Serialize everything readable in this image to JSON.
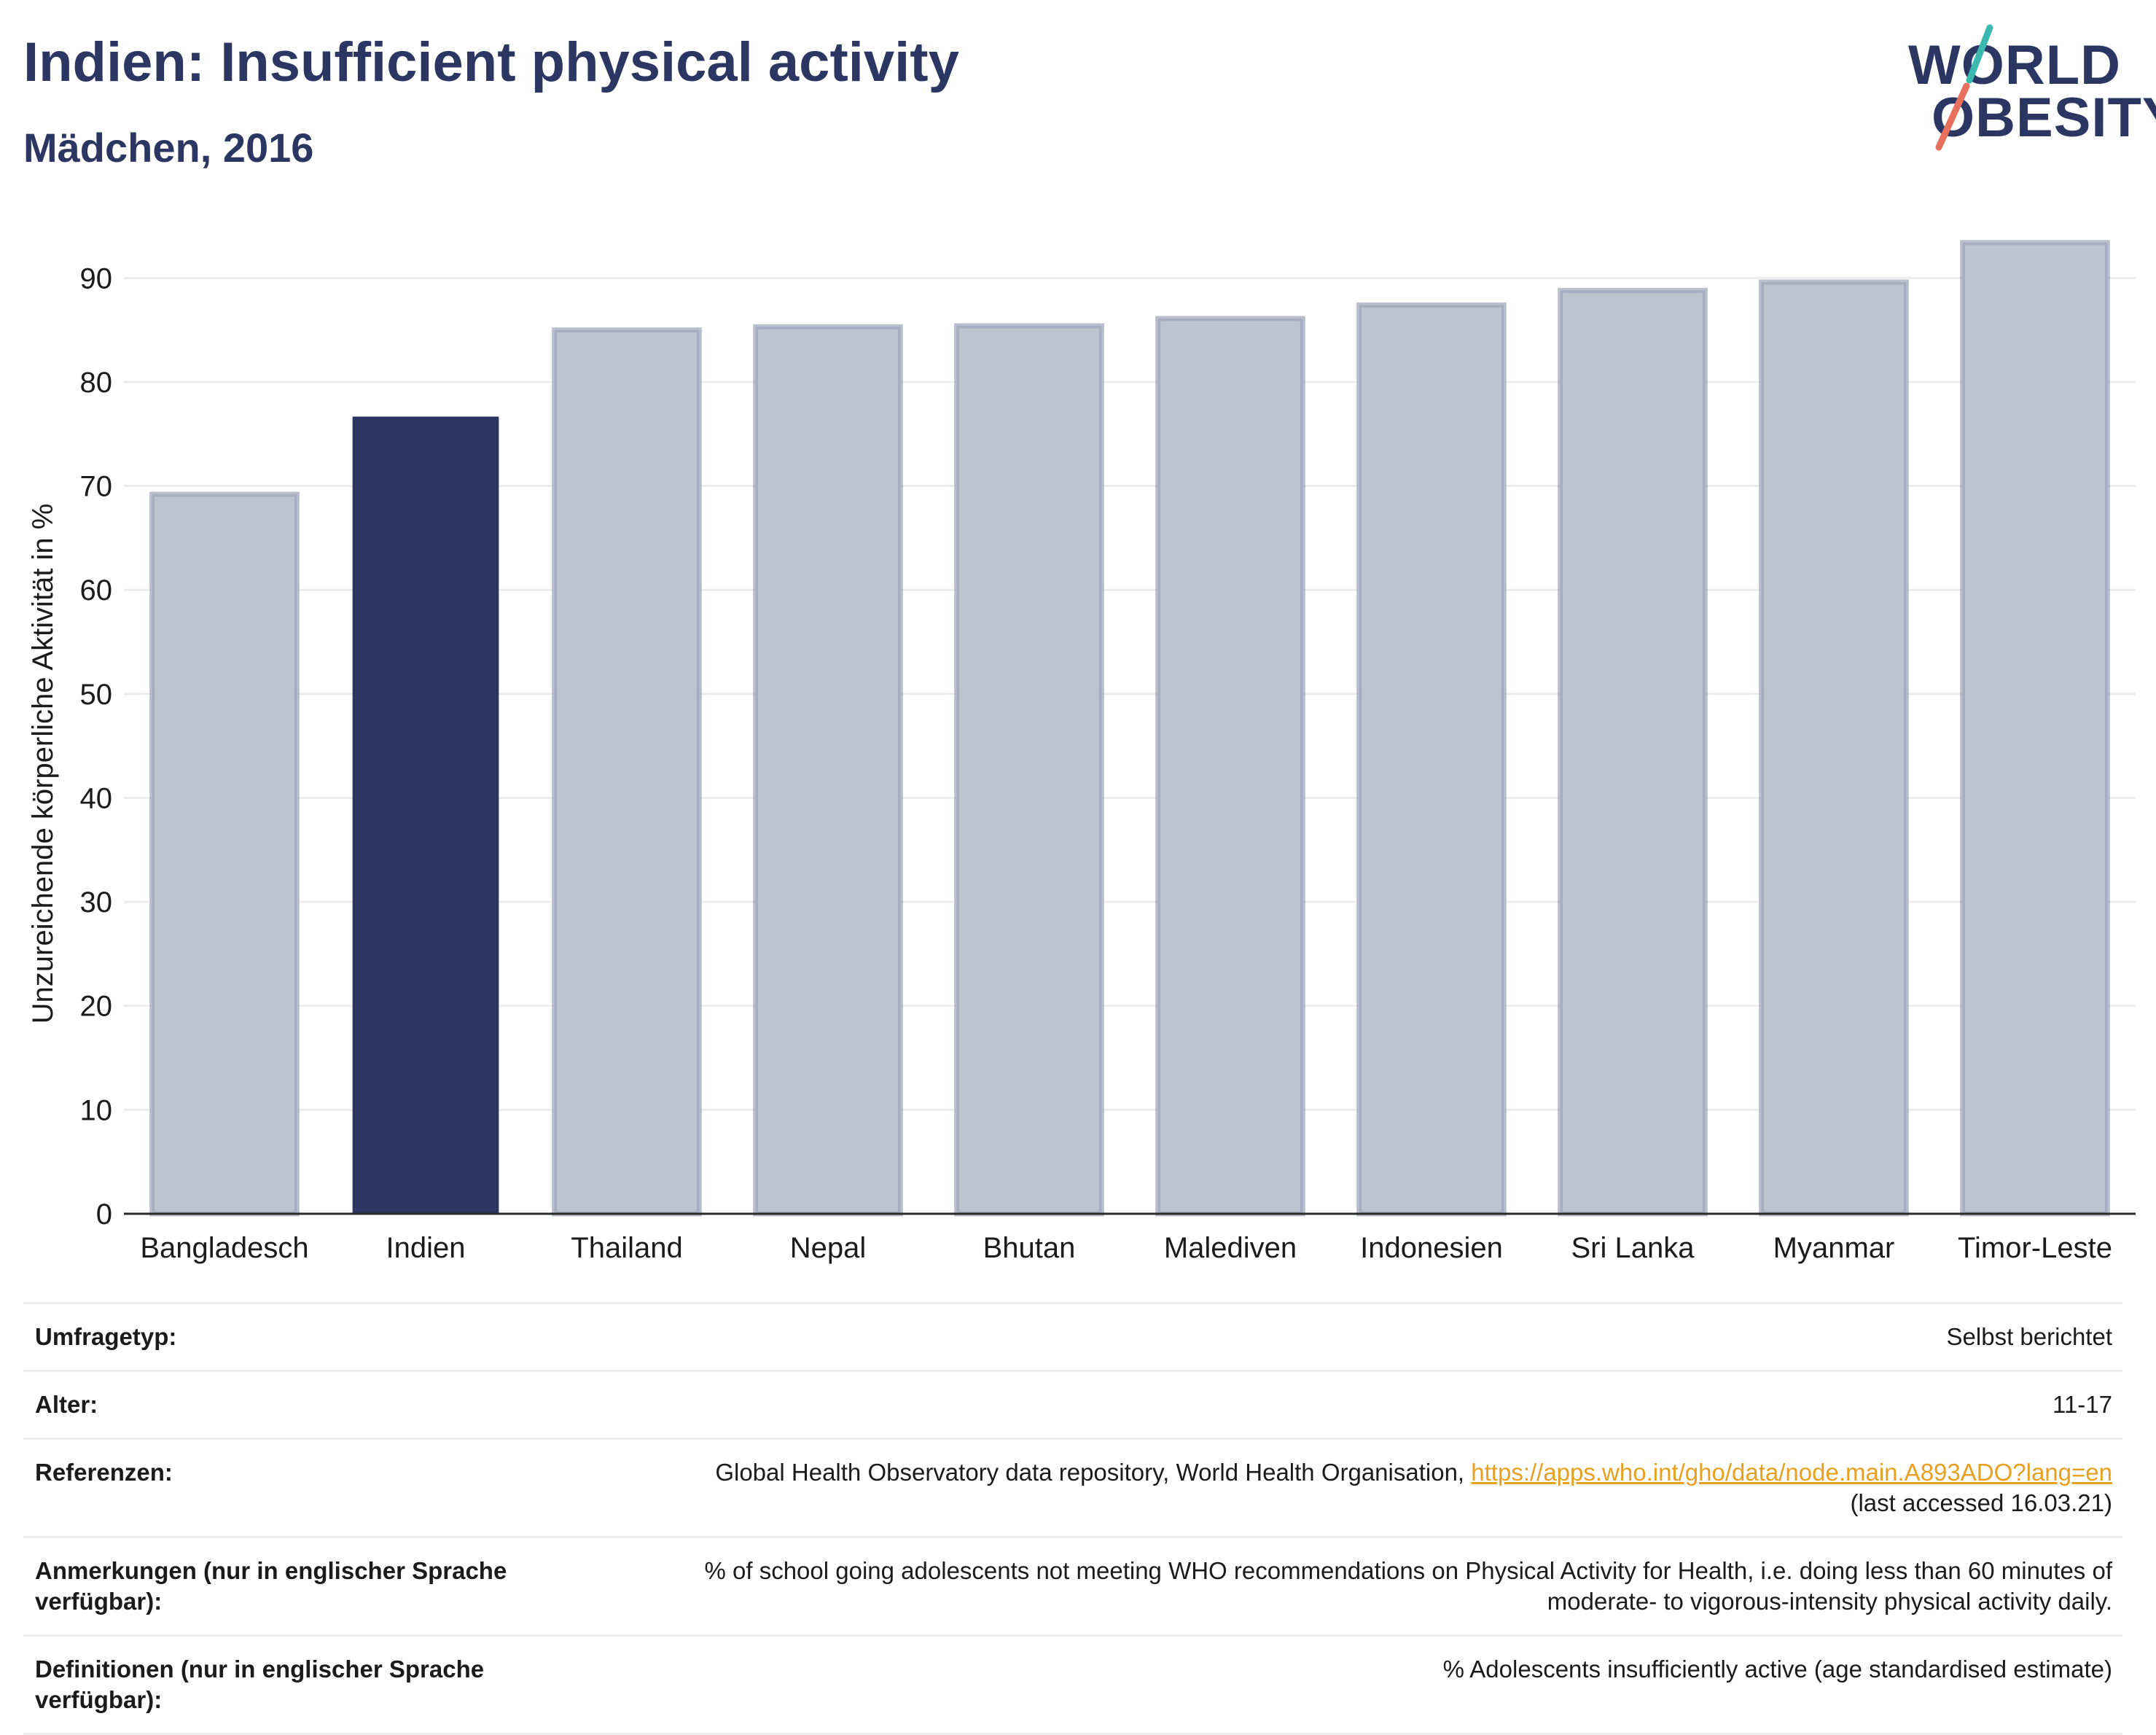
{
  "header": {
    "title": "Indien: Insufficient physical activity",
    "subtitle": "Mädchen, 2016",
    "logo_line1": "WORLD",
    "logo_line2": "OBESITY"
  },
  "chart_data": {
    "type": "bar",
    "title": "Indien: Insufficient physical activity",
    "subtitle": "Mädchen, 2016",
    "ylabel": "Unzureichende körperliche Aktivität in %",
    "xlabel": "",
    "categories": [
      "Bangladesch",
      "Indien",
      "Thailand",
      "Nepal",
      "Bhutan",
      "Malediven",
      "Indonesien",
      "Sri Lanka",
      "Myanmar",
      "Timor-Leste"
    ],
    "values": [
      69.2,
      76.6,
      85.0,
      85.3,
      85.4,
      86.1,
      87.4,
      88.8,
      89.6,
      93.4
    ],
    "highlight": "Indien",
    "ylim": [
      0,
      95
    ],
    "yticks": [
      0,
      10,
      20,
      30,
      40,
      50,
      60,
      70,
      80,
      90
    ],
    "grid": true,
    "legend": "none",
    "colors": {
      "highlight": "#2b3762",
      "other": "#bfc2cf",
      "other_border": "#9ea3b9",
      "axis": "#2b2b2b",
      "grid": "#ececec"
    }
  },
  "notes": {
    "survey_label": "Umfragetyp:",
    "survey_value": "Selbst berichtet",
    "age_label": "Alter:",
    "age_value": "11-17",
    "ref_label": "Referenzen:",
    "ref_text": "Global Health Observatory data repository, World Health Organisation,",
    "ref_link": "https://apps.who.int/gho/data/node.main.A893ADO?lang=en",
    "ref_accessed": "(last accessed 16.03.21)",
    "remarks_label": "Anmerkungen (nur in englischer Sprache verfügbar):",
    "remarks_line1": "% of school going adolescents not meeting WHO recommendations on Physical Activity for Health, i.e. doing less than 60 minutes of",
    "remarks_line2": "moderate- to vigorous-intensity physical activity daily.",
    "definitions_label": "Definitionen (nur in englischer Sprache verfügbar):",
    "definitions_value": "% Adolescents insufficiently active (age standardised estimate)"
  }
}
